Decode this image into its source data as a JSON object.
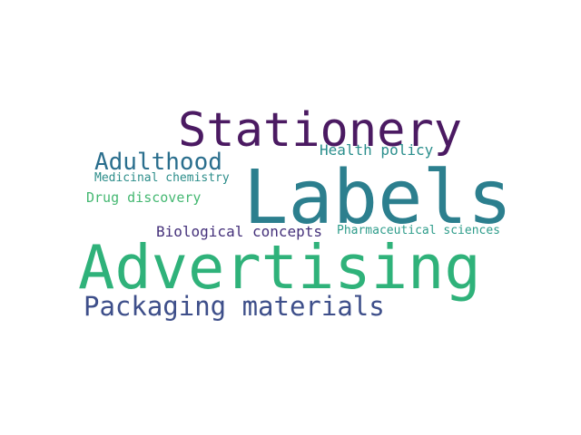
{
  "words": [
    {
      "id": "stationery",
      "text": "Stationery",
      "color": "#4b1a62"
    },
    {
      "id": "labels",
      "text": "Labels",
      "color": "#2c7f8e"
    },
    {
      "id": "advertising",
      "text": "Advertising",
      "color": "#2fb27a"
    },
    {
      "id": "adulthood",
      "text": "Adulthood",
      "color": "#2a6e8d"
    },
    {
      "id": "packaging",
      "text": "Packaging materials",
      "color": "#3e4f8a"
    },
    {
      "id": "health",
      "text": "Health policy",
      "color": "#2a8e8c"
    },
    {
      "id": "medicinal",
      "text": "Medicinal chemistry",
      "color": "#2c8d8a"
    },
    {
      "id": "drug",
      "text": "Drug discovery",
      "color": "#45b872"
    },
    {
      "id": "biological",
      "text": "Biological concepts",
      "color": "#44307a"
    },
    {
      "id": "pharma",
      "text": "Pharmaceutical sciences",
      "color": "#2d9c8a"
    }
  ]
}
